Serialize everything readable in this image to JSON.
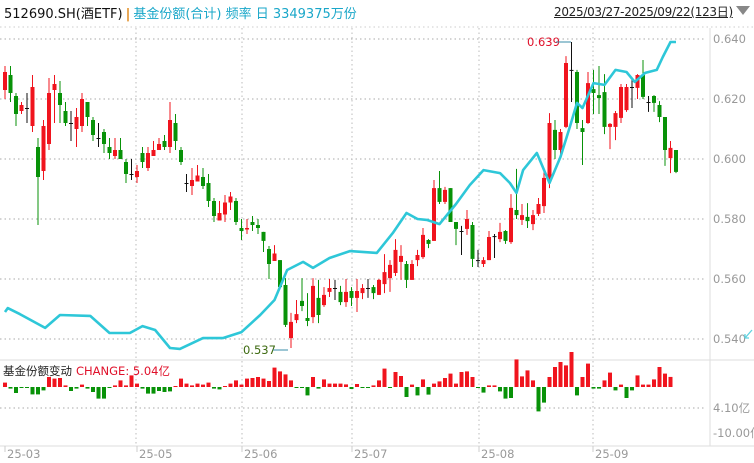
{
  "header": {
    "symbol": "512690.SH(酒ETF)",
    "separator": "|",
    "indicator": "基金份额(合计) 频率 日 3349375万份",
    "date_range": "2025/03/27-2025/09/22(123日)",
    "range_dropdown_icon": "triangle-down-icon"
  },
  "sub_panel": {
    "title": "基金份额变动",
    "change_label": "CHANGE: 5.04亿",
    "axis_labels": [
      "4.10亿",
      "-10.00亿"
    ]
  },
  "colors": {
    "up": "#f0141e",
    "down": "#089208",
    "doji": "#111111",
    "share_line": "#2ec7d8",
    "title": "#1aa7c9"
  },
  "chart_data": [
    {
      "type": "candlestick",
      "y_axis": {
        "ticks": [
          "0.640",
          "0.620",
          "0.600",
          "0.580",
          "0.560",
          "0.540"
        ],
        "range": [
          0.535,
          0.645
        ]
      },
      "x_axis": {
        "ticks": [
          "25-03",
          "25-05",
          "25-06",
          "25-07",
          "25-08",
          "25-09"
        ]
      },
      "annotations": {
        "max": "0.639",
        "min": "0.537"
      },
      "candles_ochl_fields": [
        "open",
        "close",
        "high",
        "low"
      ],
      "candles": [
        [
          0.623,
          0.629,
          0.631,
          0.62
        ],
        [
          0.628,
          0.622,
          0.631,
          0.619
        ],
        [
          0.621,
          0.615,
          0.622,
          0.611
        ],
        [
          0.616,
          0.618,
          0.619,
          0.615
        ],
        [
          0.617,
          0.617,
          0.622,
          0.612
        ],
        [
          0.611,
          0.624,
          0.628,
          0.609
        ],
        [
          0.604,
          0.594,
          0.607,
          0.578
        ],
        [
          0.596,
          0.611,
          0.613,
          0.593
        ],
        [
          0.605,
          0.622,
          0.627,
          0.603
        ],
        [
          0.623,
          0.625,
          0.628,
          0.612
        ],
        [
          0.622,
          0.618,
          0.626,
          0.612
        ],
        [
          0.616,
          0.612,
          0.619,
          0.611
        ],
        [
          0.612,
          0.612,
          0.616,
          0.606
        ],
        [
          0.61,
          0.614,
          0.617,
          0.604
        ],
        [
          0.611,
          0.62,
          0.622,
          0.609
        ],
        [
          0.619,
          0.614,
          0.619,
          0.611
        ],
        [
          0.613,
          0.608,
          0.614,
          0.606
        ],
        [
          0.607,
          0.607,
          0.612,
          0.604
        ],
        [
          0.609,
          0.605,
          0.61,
          0.602
        ],
        [
          0.604,
          0.602,
          0.607,
          0.6
        ],
        [
          0.601,
          0.603,
          0.607,
          0.6
        ],
        [
          0.603,
          0.6,
          0.607,
          0.6
        ],
        [
          0.599,
          0.595,
          0.6,
          0.592
        ],
        [
          0.595,
          0.595,
          0.6,
          0.593
        ],
        [
          0.594,
          0.596,
          0.598,
          0.592
        ],
        [
          0.602,
          0.599,
          0.604,
          0.597
        ],
        [
          0.597,
          0.602,
          0.604,
          0.596
        ],
        [
          0.601,
          0.603,
          0.606,
          0.601
        ],
        [
          0.603,
          0.605,
          0.607,
          0.603
        ],
        [
          0.606,
          0.604,
          0.608,
          0.603
        ],
        [
          0.604,
          0.613,
          0.619,
          0.602
        ],
        [
          0.612,
          0.606,
          0.615,
          0.603
        ],
        [
          0.603,
          0.599,
          0.604,
          0.598
        ],
        [
          0.592,
          0.592,
          0.595,
          0.589
        ],
        [
          0.591,
          0.593,
          0.597,
          0.588
        ],
        [
          0.5925,
          0.5945,
          0.598,
          0.5925
        ],
        [
          0.594,
          0.591,
          0.597,
          0.59
        ],
        [
          0.592,
          0.586,
          0.595,
          0.584
        ],
        [
          0.586,
          0.581,
          0.587,
          0.579
        ],
        [
          0.5795,
          0.582,
          0.586,
          0.5795
        ],
        [
          0.5815,
          0.5855,
          0.588,
          0.579
        ],
        [
          0.5855,
          0.5875,
          0.589,
          0.583
        ],
        [
          0.586,
          0.579,
          0.587,
          0.578
        ],
        [
          0.577,
          0.576,
          0.58,
          0.573
        ],
        [
          0.5765,
          0.577,
          0.58,
          0.575
        ],
        [
          0.579,
          0.578,
          0.581,
          0.576
        ],
        [
          0.578,
          0.577,
          0.58,
          0.575
        ],
        [
          0.5757,
          0.5727,
          0.5757,
          0.569
        ],
        [
          0.57,
          0.565,
          0.571,
          0.56
        ],
        [
          0.566,
          0.5685,
          0.5713,
          0.566
        ],
        [
          0.5663,
          0.5573,
          0.5663,
          0.5573
        ],
        [
          0.558,
          0.5447,
          0.5603,
          0.544
        ],
        [
          0.5403,
          0.5457,
          0.5487,
          0.537
        ],
        [
          0.5463,
          0.5483,
          0.553,
          0.5453
        ],
        [
          0.5527,
          0.551,
          0.5603,
          0.5493
        ],
        [
          0.547,
          0.546,
          0.5553,
          0.5443
        ],
        [
          0.5473,
          0.5577,
          0.5603,
          0.5453
        ],
        [
          0.5537,
          0.548,
          0.5597,
          0.5453
        ],
        [
          0.5513,
          0.5547,
          0.5573,
          0.5507
        ],
        [
          0.5557,
          0.557,
          0.56,
          0.554
        ],
        [
          0.557,
          0.557,
          0.5597,
          0.553
        ],
        [
          0.5557,
          0.5523,
          0.5577,
          0.5513
        ],
        [
          0.5523,
          0.5557,
          0.56,
          0.5507
        ],
        [
          0.556,
          0.5537,
          0.5573,
          0.551
        ],
        [
          0.5537,
          0.556,
          0.56,
          0.549
        ],
        [
          0.5553,
          0.557,
          0.5583,
          0.5533
        ],
        [
          0.557,
          0.557,
          0.56,
          0.5537
        ],
        [
          0.5573,
          0.5553,
          0.558,
          0.5533
        ],
        [
          0.5547,
          0.5597,
          0.56,
          0.5547
        ],
        [
          0.5583,
          0.5623,
          0.5683,
          0.5553
        ],
        [
          0.5603,
          0.5647,
          0.5663,
          0.5557
        ],
        [
          0.562,
          0.5697,
          0.5733,
          0.561
        ],
        [
          0.5657,
          0.5677,
          0.5713,
          0.5597
        ],
        [
          0.565,
          0.5597,
          0.566,
          0.557
        ],
        [
          0.5597,
          0.565,
          0.5663,
          0.5597
        ],
        [
          0.5663,
          0.568,
          0.5697,
          0.5643
        ],
        [
          0.5673,
          0.5747,
          0.577,
          0.5667
        ],
        [
          0.573,
          0.5717,
          0.5733,
          0.5703
        ],
        [
          0.5727,
          0.5903,
          0.593,
          0.5727
        ],
        [
          0.5903,
          0.5857,
          0.596,
          0.585
        ],
        [
          0.5857,
          0.5897,
          0.5907,
          0.585
        ],
        [
          0.5903,
          0.579,
          0.5903,
          0.579
        ],
        [
          0.579,
          0.5767,
          0.579,
          0.5713
        ],
        [
          0.576,
          0.576,
          0.5777,
          0.568
        ],
        [
          0.5767,
          0.58,
          0.583,
          0.5747
        ],
        [
          0.578,
          0.5667,
          0.579,
          0.564
        ],
        [
          0.5663,
          0.5663,
          0.5697,
          0.564
        ],
        [
          0.565,
          0.5663,
          0.5673,
          0.564
        ],
        [
          0.5663,
          0.574,
          0.576,
          0.5663
        ],
        [
          0.5743,
          0.5743,
          0.575,
          0.567
        ],
        [
          0.5733,
          0.5757,
          0.5787,
          0.5723
        ],
        [
          0.576,
          0.5727,
          0.5763,
          0.5717
        ],
        [
          0.5723,
          0.5837,
          0.5883,
          0.5717
        ],
        [
          0.583,
          0.5813,
          0.5967,
          0.58
        ],
        [
          0.5797,
          0.5813,
          0.585,
          0.578
        ],
        [
          0.5807,
          0.5793,
          0.5853,
          0.577
        ],
        [
          0.5783,
          0.5813,
          0.583,
          0.5763
        ],
        [
          0.5817,
          0.585,
          0.587,
          0.581
        ],
        [
          0.5843,
          0.5937,
          0.596,
          0.582
        ],
        [
          0.5937,
          0.612,
          0.6153,
          0.5903
        ],
        [
          0.6097,
          0.603,
          0.613,
          0.6
        ],
        [
          0.603,
          0.609,
          0.61,
          0.6
        ],
        [
          0.6107,
          0.632,
          0.6343,
          0.6103
        ],
        [
          0.6297,
          0.6297,
          0.639,
          0.619
        ],
        [
          0.629,
          0.612,
          0.6297,
          0.61
        ],
        [
          0.6103,
          0.609,
          0.613,
          0.598
        ],
        [
          0.612,
          0.6253,
          0.629,
          0.6117
        ],
        [
          0.6233,
          0.622,
          0.6297,
          0.615
        ],
        [
          0.6213,
          0.6203,
          0.631,
          0.615
        ],
        [
          0.6223,
          0.6107,
          0.6283,
          0.6083
        ],
        [
          0.6107,
          0.6117,
          0.612,
          0.6033
        ],
        [
          0.6107,
          0.6153,
          0.616,
          0.6063
        ],
        [
          0.6137,
          0.624,
          0.625,
          0.612
        ],
        [
          0.6163,
          0.624,
          0.625,
          0.6157
        ],
        [
          0.624,
          0.624,
          0.627,
          0.617
        ],
        [
          0.6237,
          0.628,
          0.6283,
          0.62
        ],
        [
          0.628,
          0.6207,
          0.633,
          0.62
        ],
        [
          0.619,
          0.619,
          0.621,
          0.6157
        ],
        [
          0.621,
          0.6187,
          0.6213,
          0.6157
        ],
        [
          0.618,
          0.614,
          0.6193,
          0.6123
        ],
        [
          0.614,
          0.603,
          0.614,
          0.5977
        ],
        [
          0.6003,
          0.6037,
          0.606,
          0.5953
        ],
        [
          0.603,
          0.5957,
          0.603,
          0.5953
        ]
      ],
      "share_line_points_index_level": [
        [
          0,
          0.549
        ],
        [
          0.5,
          0.5503
        ],
        [
          2.7,
          0.5483
        ],
        [
          7.3,
          0.5437
        ],
        [
          10,
          0.548
        ],
        [
          15.5,
          0.5477
        ],
        [
          19,
          0.542
        ],
        [
          22.7,
          0.542
        ],
        [
          25,
          0.5443
        ],
        [
          27.3,
          0.543
        ],
        [
          30,
          0.537
        ],
        [
          31.8,
          0.5367
        ],
        [
          36,
          0.5403
        ],
        [
          39.6,
          0.5403
        ],
        [
          43,
          0.5423
        ],
        [
          46.4,
          0.548
        ],
        [
          49,
          0.553
        ],
        [
          51.3,
          0.563
        ],
        [
          54.2,
          0.5657
        ],
        [
          56,
          0.5637
        ],
        [
          59,
          0.567
        ],
        [
          62.7,
          0.5693
        ],
        [
          67.6,
          0.5687
        ],
        [
          70.5,
          0.5753
        ],
        [
          73,
          0.582
        ],
        [
          75,
          0.58
        ],
        [
          76.7,
          0.5797
        ],
        [
          79,
          0.5783
        ],
        [
          82,
          0.585
        ],
        [
          84.5,
          0.5913
        ],
        [
          87,
          0.5963
        ],
        [
          90,
          0.5953
        ],
        [
          91.8,
          0.592
        ],
        [
          93,
          0.5887
        ],
        [
          94.2,
          0.5963
        ],
        [
          96.7,
          0.602
        ],
        [
          99,
          0.592
        ],
        [
          101,
          0.6007
        ],
        [
          102.7,
          0.6107
        ],
        [
          104,
          0.6187
        ],
        [
          105,
          0.617
        ],
        [
          107,
          0.6253
        ],
        [
          109,
          0.6247
        ],
        [
          111,
          0.6297
        ],
        [
          113,
          0.629
        ],
        [
          114.5,
          0.6257
        ],
        [
          116.4,
          0.6287
        ],
        [
          118.5,
          0.6297
        ],
        [
          119.6,
          0.634
        ],
        [
          121,
          0.639
        ],
        [
          122,
          0.639
        ]
      ]
    },
    {
      "type": "bar",
      "unit": "亿",
      "y_axis": {
        "ticks": [
          "4.10亿",
          "-10.00亿"
        ]
      },
      "values": [
        2.2,
        -0.8,
        -3,
        -0.3,
        -0.3,
        -3.7,
        -3.7,
        -1.7,
        5,
        4.2,
        4.5,
        0.8,
        -2,
        -0.8,
        1.2,
        -0.8,
        -2.5,
        -5.8,
        -5.8,
        -0.5,
        0.8,
        3.3,
        0.8,
        5.8,
        1.7,
        -0.8,
        -3.3,
        -3.3,
        -2,
        -2.5,
        -2.2,
        0.3,
        4.2,
        1.7,
        0.8,
        1.7,
        1.2,
        2.2,
        -0.8,
        -1.2,
        0.3,
        1.7,
        3.3,
        1.2,
        4.2,
        4.5,
        5,
        4.2,
        3,
        9.7,
        7.8,
        6.3,
        3.3,
        -0.5,
        -0.5,
        -4.2,
        5,
        -0.8,
        3.8,
        1.7,
        1.7,
        1.7,
        1.3,
        -1,
        1.5,
        -0.3,
        -0.5,
        0.8,
        3.3,
        9.2,
        -0.5,
        7.5,
        5.5,
        -5,
        1.2,
        -4.2,
        3.8,
        -3.8,
        1.7,
        2.8,
        4.5,
        6.7,
        1.7,
        7.5,
        7.8,
        5,
        -0.3,
        -2.8,
        0.8,
        0.8,
        -2.2,
        -5.8,
        -5.5,
        13.8,
        5.3,
        8.3,
        3.3,
        -12.2,
        -7.8,
        5,
        10,
        12.5,
        10.8,
        17.5,
        -4.2,
        5,
        11.7,
        -0.8,
        -0.8,
        3.3,
        7.2,
        -1.7,
        1.2,
        -5.5,
        -1.7,
        5.8,
        1.2,
        1.2,
        3.8,
        10,
        6.7,
        5.04
      ]
    }
  ]
}
